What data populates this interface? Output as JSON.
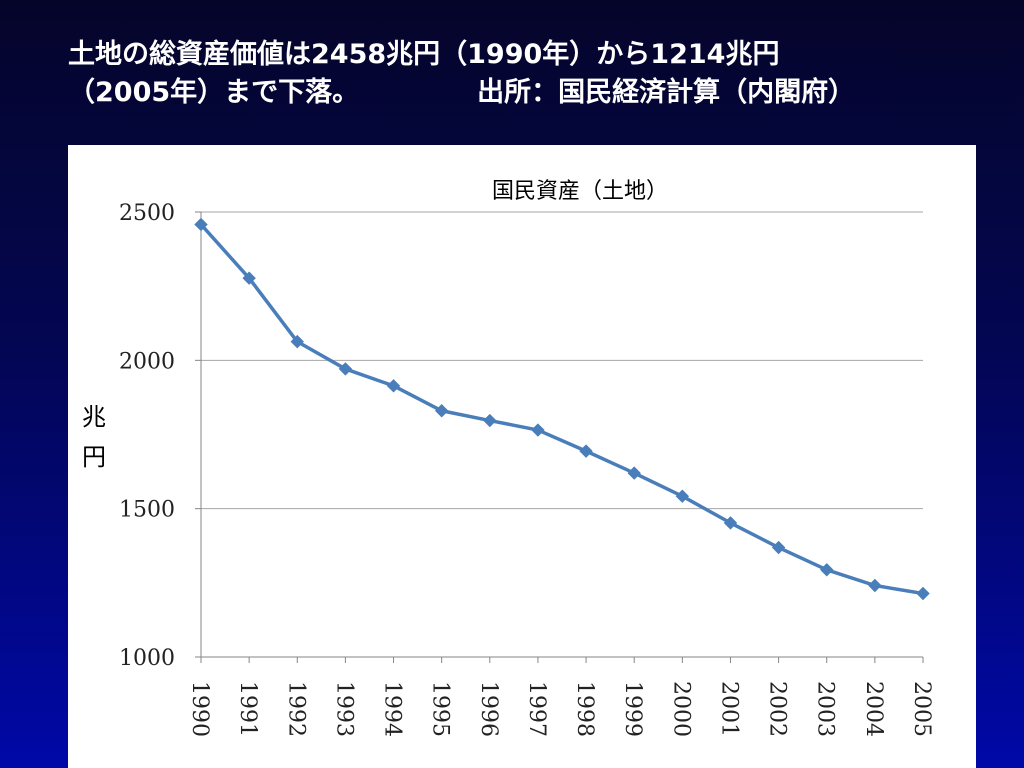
{
  "slide": {
    "headline_line1": "土地の総資産価値は2458兆円（1990年）から1214兆円",
    "headline_line2": "（2005年）まで下落。",
    "source": "出所：国民経済計算（内閣府）"
  },
  "chart_data": {
    "type": "line",
    "title": "国民資産（土地）",
    "ylabel": "兆円",
    "xlabel": "",
    "categories": [
      "1990",
      "1991",
      "1992",
      "1993",
      "1994",
      "1995",
      "1996",
      "1997",
      "1998",
      "1999",
      "2000",
      "2001",
      "2002",
      "2003",
      "2004",
      "2005"
    ],
    "series": [
      {
        "values": [
          2458,
          2277,
          2063,
          1971,
          1914,
          1830,
          1797,
          1765,
          1694,
          1620,
          1542,
          1452,
          1369,
          1294,
          1241,
          1214
        ]
      }
    ],
    "ylim": [
      1000,
      2500
    ],
    "yticks": [
      "1000",
      "1500",
      "2000",
      "2500"
    ],
    "grid": true,
    "legend": "none",
    "colors": {
      "line": "#4a7ebb",
      "grid": "#a6a6a6",
      "axis": "#868686"
    }
  }
}
